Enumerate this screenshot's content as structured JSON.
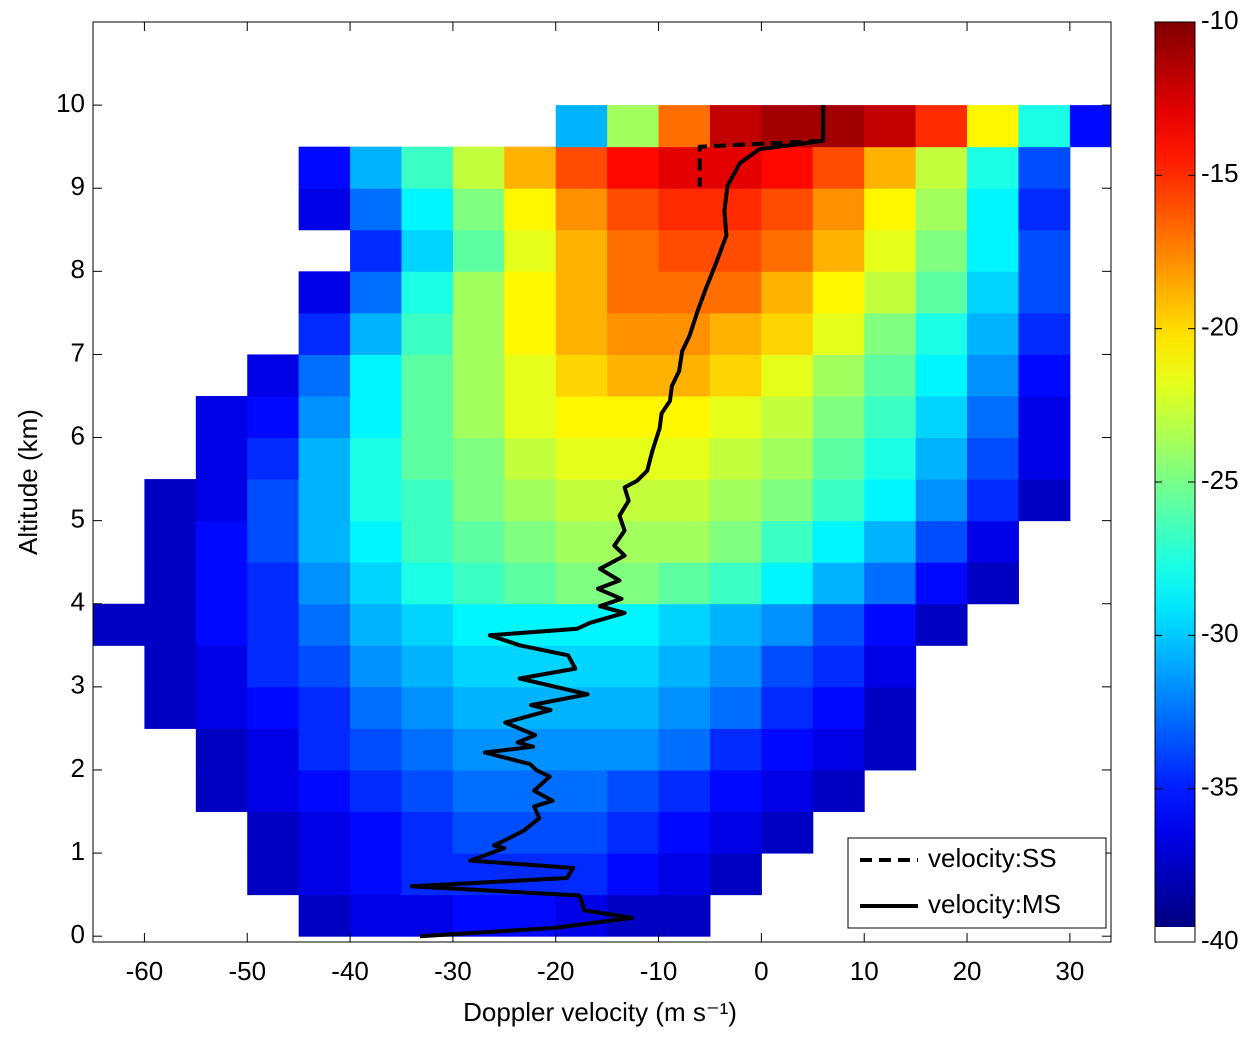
{
  "chart_data": {
    "type": "heatmap-lines",
    "xlabel": "Doppler velocity (m s⁻¹)",
    "ylabel": "Altitude (km)",
    "xlim": [
      -65,
      34
    ],
    "ylim": [
      -0.07,
      11
    ],
    "xticks": [
      -60,
      -50,
      -40,
      -30,
      -20,
      -10,
      0,
      10,
      20,
      30
    ],
    "yticks": [
      0,
      1,
      2,
      3,
      4,
      5,
      6,
      7,
      8,
      9,
      10
    ],
    "heatmap": {
      "x": [
        -62.5,
        -57.5,
        -52.5,
        -47.5,
        -42.5,
        -37.5,
        -32.5,
        -27.5,
        -22.5,
        -17.5,
        -12.5,
        -7.5,
        -2.5,
        2.5,
        7.5,
        12.5,
        17.5,
        22.5,
        27.5,
        32.5
      ],
      "y": [
        0.25,
        0.75,
        1.25,
        1.75,
        2.25,
        2.75,
        3.25,
        3.75,
        4.25,
        4.75,
        5.25,
        5.75,
        6.25,
        6.75,
        7.25,
        7.75,
        8.25,
        8.75,
        9.25,
        9.75
      ],
      "z": [
        [
          null,
          null,
          null,
          null,
          -38,
          -37,
          -37,
          -36,
          -36,
          -37,
          -38,
          -38,
          null,
          null,
          null,
          null,
          null,
          null,
          null,
          null
        ],
        [
          null,
          null,
          null,
          -38,
          -37,
          -36,
          -35,
          -35,
          -35,
          -35,
          -36,
          -37,
          -38,
          null,
          null,
          null,
          null,
          null,
          null,
          null
        ],
        [
          null,
          null,
          null,
          -38,
          -37,
          -36,
          -35,
          -34,
          -34,
          -34,
          -35,
          -36,
          -37,
          -38,
          null,
          null,
          null,
          null,
          null,
          null
        ],
        [
          null,
          null,
          -38,
          -37,
          -36,
          -35,
          -34,
          -33,
          -33,
          -33,
          -34,
          -35,
          -36,
          -37,
          -38,
          null,
          null,
          null,
          null,
          null
        ],
        [
          null,
          null,
          -38,
          -37,
          -35,
          -34,
          -33,
          -32,
          -32,
          -32,
          -32,
          -33,
          -35,
          -36,
          -37,
          -38,
          null,
          null,
          null,
          null
        ],
        [
          null,
          -38,
          -37,
          -36,
          -35,
          -33,
          -32,
          -31,
          -31,
          -31,
          -31,
          -32,
          -33,
          -35,
          -36,
          -38,
          null,
          null,
          null,
          null
        ],
        [
          null,
          -38,
          -37,
          -35,
          -34,
          -32,
          -31,
          -30,
          -30,
          -30,
          -30,
          -31,
          -32,
          -34,
          -35,
          -37,
          null,
          null,
          null,
          null
        ],
        [
          -38,
          -38,
          -36,
          -35,
          -33,
          -31,
          -30,
          -29,
          -29,
          -29,
          -29,
          -30,
          -31,
          -32,
          -34,
          -36,
          -38,
          null,
          null,
          null
        ],
        [
          null,
          -38,
          -36,
          -35,
          -32,
          -30,
          -28,
          -27,
          -26,
          -25,
          -25,
          -26,
          -27,
          -29,
          -31,
          -33,
          -36,
          -38,
          null,
          null
        ],
        [
          null,
          -38,
          -36,
          -34,
          -31,
          -29,
          -27,
          -26,
          -25,
          -24,
          -24,
          -24,
          -25,
          -27,
          -29,
          -31,
          -34,
          -37,
          null,
          null
        ],
        [
          null,
          -38,
          -37,
          -34,
          -31,
          -28,
          -27,
          -25,
          -24,
          -23,
          -23,
          -23,
          -24,
          -25,
          -27,
          -29,
          -32,
          -35,
          -38,
          null
        ],
        [
          null,
          null,
          -37,
          -35,
          -31,
          -28,
          -26,
          -25,
          -23,
          -22,
          -22,
          -22,
          -23,
          -24,
          -26,
          -28,
          -31,
          -34,
          -37,
          null
        ],
        [
          null,
          null,
          -37,
          -36,
          -32,
          -29,
          -26,
          -24,
          -22,
          -21,
          -21,
          -21,
          -22,
          -23,
          -25,
          -27,
          -30,
          -33,
          -37,
          null
        ],
        [
          null,
          null,
          null,
          -37,
          -33,
          -29,
          -26,
          -24,
          -22,
          -20,
          -19,
          -19,
          -20,
          -22,
          -24,
          -26,
          -29,
          -32,
          -36,
          null
        ],
        [
          null,
          null,
          null,
          null,
          -35,
          -31,
          -27,
          -24,
          -21,
          -19,
          -18,
          -18,
          -19,
          -20,
          -22,
          -25,
          -28,
          -31,
          -35,
          null
        ],
        [
          null,
          null,
          null,
          null,
          -37,
          -33,
          -28,
          -24,
          -21,
          -19,
          -17,
          -17,
          -17,
          -19,
          -21,
          -23,
          -26,
          -30,
          -34,
          null
        ],
        [
          null,
          null,
          null,
          null,
          null,
          -35,
          -30,
          -26,
          -22,
          -19,
          -17,
          -16,
          -16,
          -17,
          -19,
          -22,
          -25,
          -29,
          -34,
          null
        ],
        [
          null,
          null,
          null,
          null,
          -37,
          -33,
          -29,
          -25,
          -21,
          -18,
          -16,
          -15,
          -15,
          -16,
          -18,
          -21,
          -24,
          -29,
          -35,
          null
        ],
        [
          null,
          null,
          null,
          null,
          -36,
          -31,
          -27,
          -23,
          -19,
          -16,
          -14,
          -13,
          -13,
          -14,
          -16,
          -19,
          -23,
          -28,
          -34,
          null
        ],
        [
          null,
          null,
          null,
          null,
          null,
          null,
          null,
          null,
          null,
          -31,
          -24,
          -17,
          -12,
          -11,
          -11,
          -12,
          -15,
          -21,
          -28,
          -36
        ]
      ]
    },
    "colorbar": {
      "clim": [
        -40,
        -10
      ],
      "ticks": [
        -10,
        -15,
        -20,
        -25,
        -30,
        -35,
        -40
      ]
    },
    "series": [
      {
        "name": "velocity:SS",
        "color": "#000000",
        "dash": true,
        "x": [
          6.0,
          6.0,
          -6.0,
          -6.0
        ],
        "y": [
          10.0,
          9.57,
          9.5,
          9.02
        ]
      },
      {
        "name": "velocity:MS",
        "color": "#000000",
        "dash": false,
        "x": [
          6.0,
          6.0,
          -0.2,
          -2.1,
          -3.3,
          -3.6,
          -3.4,
          -4.4,
          -5.5,
          -6.2,
          -7.0,
          -7.7,
          -8.0,
          -8.7,
          -8.9,
          -9.7,
          -9.9,
          -10.6,
          -11.1,
          -12.1,
          -13.3,
          -12.9,
          -13.8,
          -13.3,
          -14.3,
          -13.3,
          -15.7,
          -13.8,
          -15.9,
          -13.6,
          -15.7,
          -13.3,
          -16.7,
          -17.9,
          -26.4,
          -23.5,
          -18.8,
          -18.1,
          -23.5,
          -16.9,
          -22.4,
          -20.5,
          -24.9,
          -22.0,
          -23.7,
          -22.2,
          -26.9,
          -22.5,
          -21.9,
          -20.6,
          -22.1,
          -20.3,
          -22.1,
          -21.6,
          -23.1,
          -25.0,
          -26.0,
          -25.0,
          -28.3,
          -18.3,
          -18.9,
          -34.0,
          -17.7,
          -17.2,
          -12.6,
          -20.1,
          -33.2
        ],
        "y": [
          10.0,
          9.57,
          9.47,
          9.3,
          9.03,
          8.73,
          8.43,
          8.1,
          7.76,
          7.52,
          7.22,
          7.04,
          6.8,
          6.62,
          6.44,
          6.29,
          6.11,
          5.84,
          5.6,
          5.48,
          5.4,
          5.24,
          5.06,
          4.88,
          4.7,
          4.58,
          4.42,
          4.28,
          4.18,
          4.06,
          3.97,
          3.89,
          3.77,
          3.7,
          3.62,
          3.5,
          3.38,
          3.22,
          3.1,
          2.91,
          2.78,
          2.72,
          2.57,
          2.42,
          2.33,
          2.28,
          2.21,
          2.07,
          2.0,
          1.92,
          1.75,
          1.63,
          1.56,
          1.42,
          1.27,
          1.15,
          1.09,
          1.06,
          0.91,
          0.82,
          0.7,
          0.6,
          0.49,
          0.31,
          0.22,
          0.1,
          0.0
        ]
      }
    ],
    "legend": "lower right"
  }
}
